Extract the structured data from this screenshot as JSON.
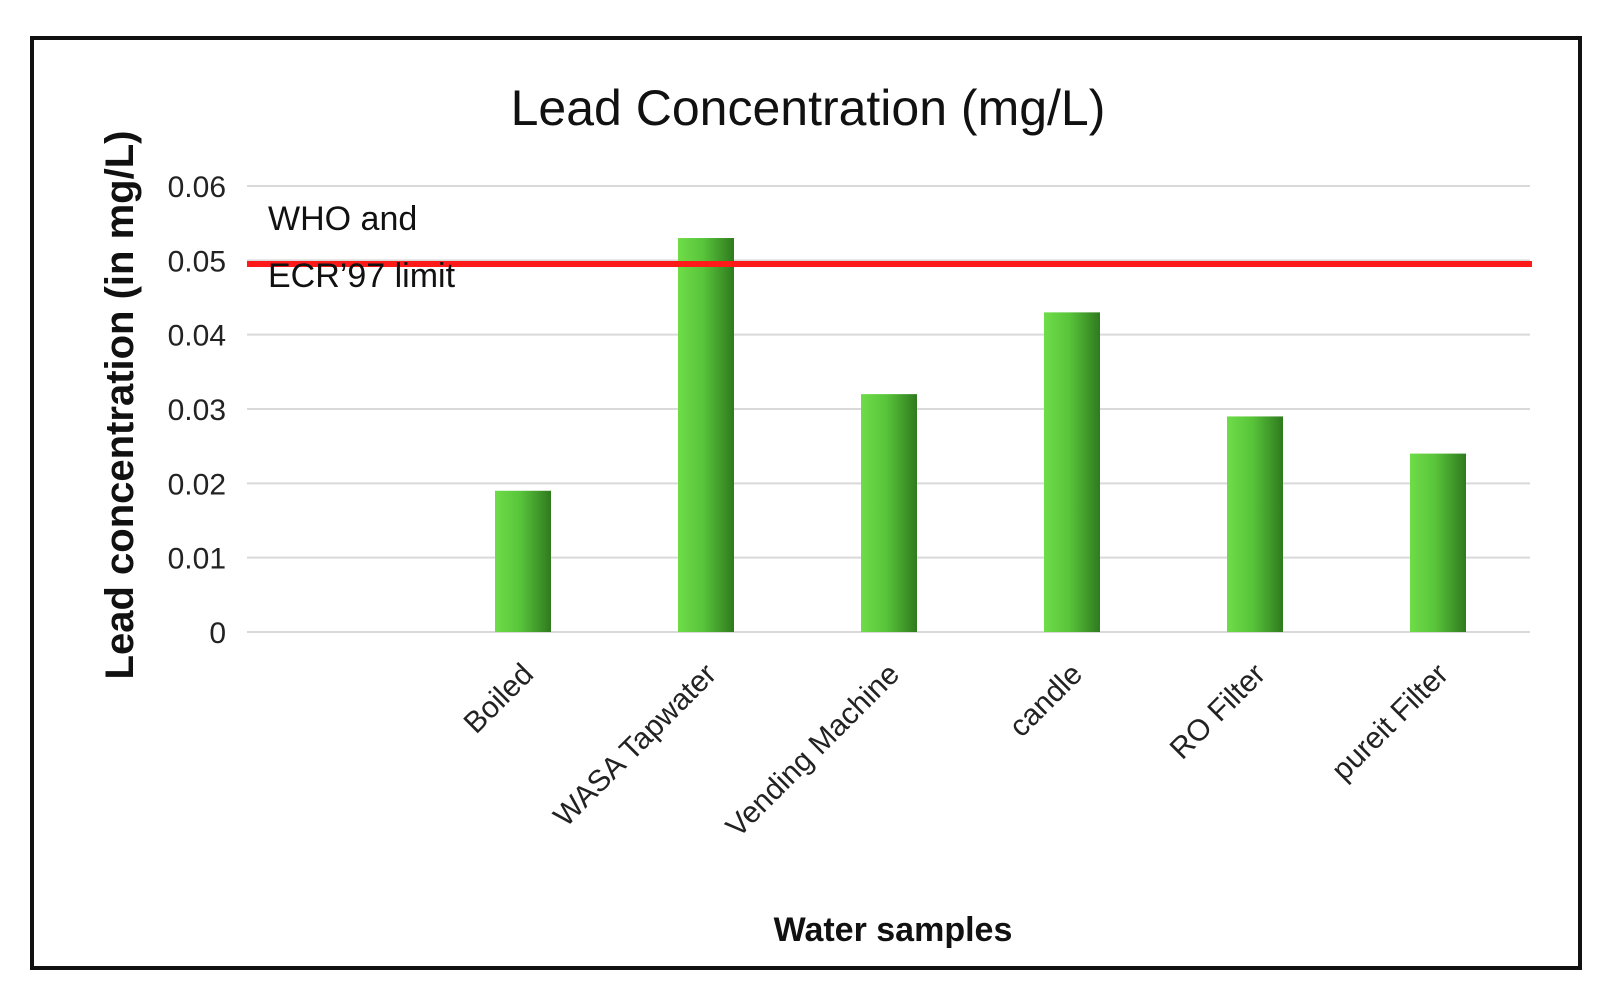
{
  "chart_data": {
    "type": "bar",
    "title": "Lead Concentration (mg/L)",
    "xlabel": "Water samples",
    "ylabel": "Lead concentration (in mg/L)",
    "categories": [
      "Boiled",
      "WASA Tapwater",
      "Vending Machine",
      "candle",
      "RO Filter",
      "pureit Filter"
    ],
    "values": [
      0.019,
      0.053,
      0.032,
      0.043,
      0.029,
      0.024
    ],
    "ylim": [
      0,
      0.06
    ],
    "yticks": [
      "0",
      "0.01",
      "0.02",
      "0.03",
      "0.04",
      "0.05",
      "0.06"
    ],
    "ytick_values": [
      0,
      0.01,
      0.02,
      0.03,
      0.04,
      0.05,
      0.06
    ],
    "grid": true,
    "reference_line": {
      "value": 0.0495,
      "label_line1": "WHO and",
      "label_line2": "ECR’97 limit",
      "color": "#ff1a1a"
    },
    "colors": {
      "bar_light": "#6fdc49",
      "bar_dark": "#2f7a1e",
      "grid": "#d9d9d9",
      "frame": "#111111"
    }
  }
}
